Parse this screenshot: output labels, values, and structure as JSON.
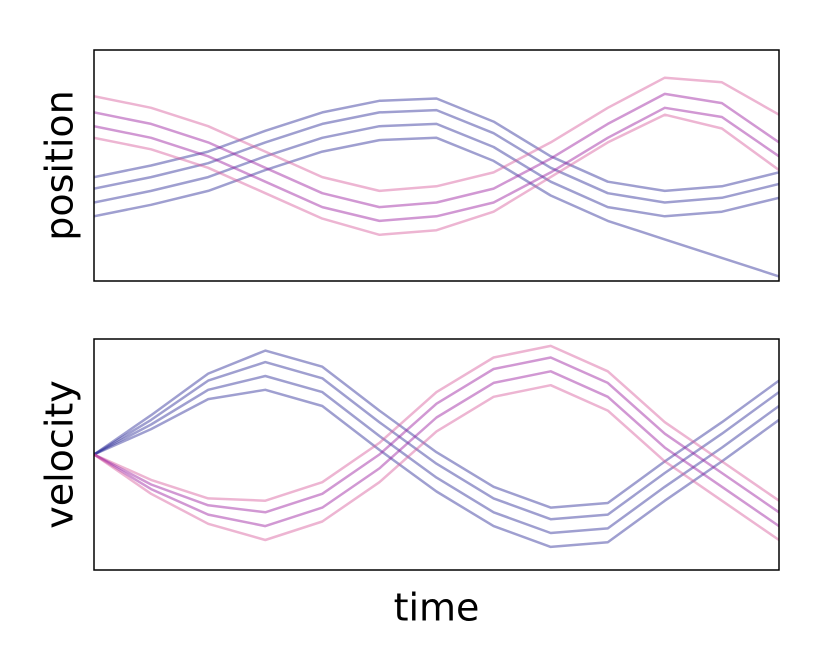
{
  "chart_data": [
    {
      "type": "line",
      "y_label": "position",
      "x": [
        0,
        1,
        2,
        3,
        4,
        5,
        6,
        7,
        8,
        9,
        10,
        11,
        12
      ],
      "xlim": [
        0,
        12
      ],
      "ylim": [
        0,
        100
      ],
      "series": [
        {
          "color": "#2a2a96",
          "values": [
            45,
            50,
            56,
            65,
            73,
            78,
            79,
            69,
            54,
            43,
            39,
            41,
            47
          ]
        },
        {
          "color": "#2a2a96",
          "values": [
            40,
            45,
            51,
            60,
            68,
            73,
            74,
            64,
            49,
            38,
            34,
            36,
            42
          ]
        },
        {
          "color": "#2a2a96",
          "values": [
            34,
            39,
            45,
            54,
            62,
            67,
            68,
            58,
            43,
            32,
            28,
            30,
            36
          ]
        },
        {
          "color": "#2a2a96",
          "values": [
            28,
            33,
            39,
            48,
            56,
            61,
            62,
            52,
            37,
            26,
            18,
            10,
            2
          ]
        },
        {
          "color": "#d65a9c",
          "values": [
            80,
            75,
            67,
            56,
            45,
            39,
            41,
            47,
            60,
            75,
            88,
            86,
            72
          ]
        },
        {
          "color": "#9a1b9e",
          "values": [
            73,
            68,
            60,
            49,
            38,
            32,
            34,
            40,
            53,
            68,
            81,
            77,
            60
          ]
        },
        {
          "color": "#9a1b9e",
          "values": [
            67,
            62,
            54,
            43,
            32,
            26,
            28,
            34,
            47,
            62,
            75,
            71,
            54
          ]
        },
        {
          "color": "#d65a9c",
          "values": [
            62,
            57,
            49,
            38,
            27,
            20,
            22,
            30,
            45,
            60,
            72,
            66,
            48
          ]
        }
      ]
    },
    {
      "type": "line",
      "y_label": "velocity",
      "x_label": "time",
      "x": [
        0,
        1,
        2,
        3,
        4,
        5,
        6,
        7,
        8,
        9,
        10,
        11,
        12
      ],
      "xlim": [
        0,
        12
      ],
      "ylim": [
        0,
        100
      ],
      "series": [
        {
          "color": "#2a2a96",
          "values": [
            50,
            67,
            85,
            95,
            88,
            69,
            51,
            36,
            27,
            29,
            47,
            64,
            82
          ]
        },
        {
          "color": "#2a2a96",
          "values": [
            50,
            65,
            82,
            90,
            83,
            64,
            46,
            31,
            22,
            24,
            42,
            59,
            77
          ]
        },
        {
          "color": "#2a2a96",
          "values": [
            50,
            63,
            78,
            84,
            77,
            58,
            40,
            25,
            16,
            18,
            36,
            53,
            71
          ]
        },
        {
          "color": "#2a2a96",
          "values": [
            50,
            61,
            74,
            78,
            71,
            52,
            34,
            19,
            10,
            12,
            30,
            47,
            65
          ]
        },
        {
          "color": "#d65a9c",
          "values": [
            50,
            39,
            31,
            30,
            38,
            55,
            77,
            92,
            97,
            86,
            64,
            47,
            30
          ]
        },
        {
          "color": "#9a1b9e",
          "values": [
            50,
            37,
            28,
            25,
            33,
            50,
            72,
            87,
            92,
            81,
            59,
            42,
            25
          ]
        },
        {
          "color": "#9a1b9e",
          "values": [
            50,
            35,
            24,
            19,
            27,
            44,
            66,
            81,
            86,
            75,
            53,
            36,
            19
          ]
        },
        {
          "color": "#d65a9c",
          "values": [
            50,
            33,
            20,
            13,
            21,
            38,
            60,
            75,
            80,
            69,
            47,
            30,
            13
          ]
        }
      ]
    }
  ]
}
